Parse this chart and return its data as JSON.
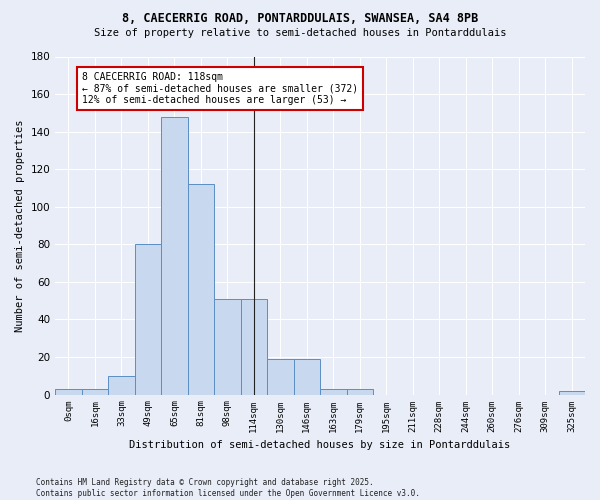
{
  "title1": "8, CAECERRIG ROAD, PONTARDDULAIS, SWANSEA, SA4 8PB",
  "title2": "Size of property relative to semi-detached houses in Pontarddulais",
  "xlabel": "Distribution of semi-detached houses by size in Pontarddulais",
  "ylabel": "Number of semi-detached properties",
  "footer": "Contains HM Land Registry data © Crown copyright and database right 2025.\nContains public sector information licensed under the Open Government Licence v3.0.",
  "bin_labels": [
    "0sqm",
    "16sqm",
    "33sqm",
    "49sqm",
    "65sqm",
    "81sqm",
    "98sqm",
    "114sqm",
    "130sqm",
    "146sqm",
    "163sqm",
    "179sqm",
    "195sqm",
    "211sqm",
    "228sqm",
    "244sqm",
    "260sqm",
    "276sqm",
    "309sqm",
    "325sqm"
  ],
  "bar_values": [
    3,
    3,
    10,
    80,
    148,
    112,
    51,
    51,
    19,
    19,
    3,
    3,
    0,
    0,
    0,
    0,
    0,
    0,
    0,
    2
  ],
  "bar_color": "#c8d8ef",
  "bar_edge_color": "#5b8ec4",
  "bg_color": "#e8edf8",
  "grid_color": "#ffffff",
  "property_line_bin": 7,
  "annotation_text": "8 CAECERRIG ROAD: 118sqm\n← 87% of semi-detached houses are smaller (372)\n12% of semi-detached houses are larger (53) →",
  "annotation_box_color": "#ffffff",
  "annotation_border_color": "#cc0000",
  "ylim": [
    0,
    180
  ],
  "yticks": [
    0,
    20,
    40,
    60,
    80,
    100,
    120,
    140,
    160,
    180
  ]
}
